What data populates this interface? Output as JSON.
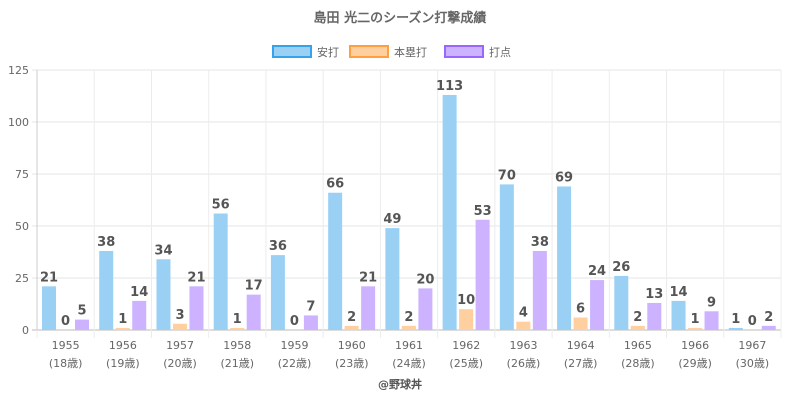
{
  "chart_data": {
    "type": "bar",
    "title": "島田 光二のシーズン打撃成績",
    "categories": [
      "1955",
      "1956",
      "1957",
      "1958",
      "1959",
      "1960",
      "1961",
      "1962",
      "1963",
      "1964",
      "1965",
      "1966",
      "1967"
    ],
    "sub_categories": [
      "(18歳)",
      "(19歳)",
      "(20歳)",
      "(21歳)",
      "(22歳)",
      "(23歳)",
      "(24歳)",
      "(25歳)",
      "(26歳)",
      "(27歳)",
      "(28歳)",
      "(29歳)",
      "(30歳)"
    ],
    "series": [
      {
        "name": "安打",
        "values": [
          21,
          38,
          34,
          56,
          36,
          66,
          49,
          113,
          70,
          69,
          26,
          14,
          1
        ],
        "fill": "#9bd0f5",
        "stroke": "#36a2eb"
      },
      {
        "name": "本塁打",
        "values": [
          0,
          1,
          3,
          1,
          0,
          2,
          2,
          10,
          4,
          6,
          2,
          1,
          0
        ],
        "fill": "#ffcf9f",
        "stroke": "#ff9f40"
      },
      {
        "name": "打点",
        "values": [
          5,
          14,
          21,
          17,
          7,
          21,
          20,
          53,
          38,
          24,
          13,
          9,
          2
        ],
        "fill": "#ccb2ff",
        "stroke": "#9966ff"
      }
    ],
    "ylim": [
      0,
      125
    ],
    "yticks": [
      0,
      25,
      50,
      75,
      100,
      125
    ],
    "grid": true,
    "legend": "top",
    "watermark": "@野球丼"
  }
}
